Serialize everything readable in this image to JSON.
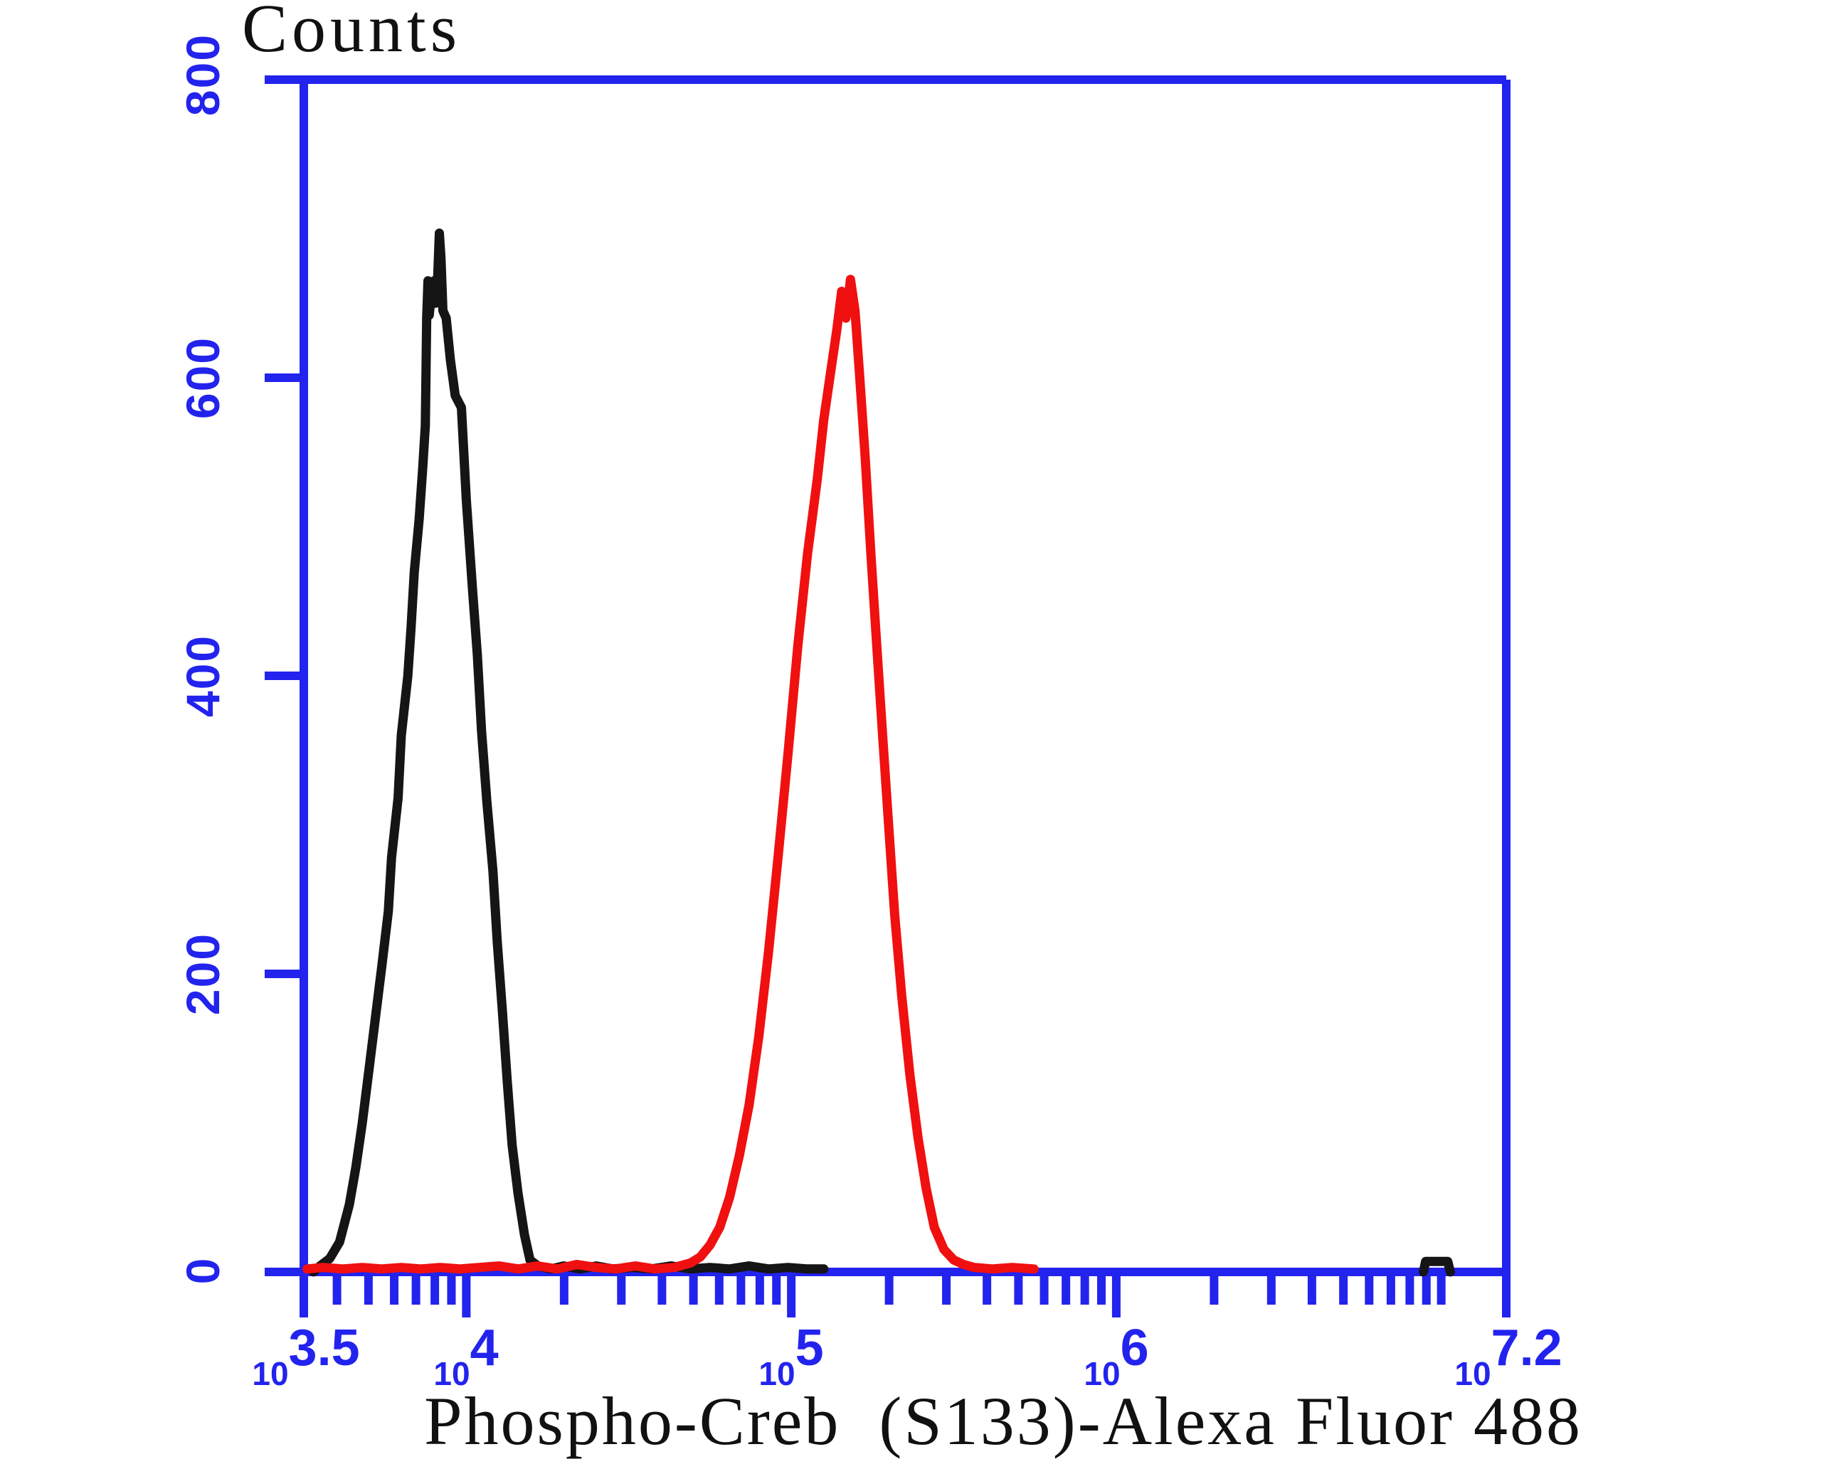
{
  "title": "Counts",
  "x_axis": {
    "label": "Phospho-Creb  (S133)-Alexa Fluor 488",
    "base": "10",
    "scale": "log10 (labels shown as exponents of 10)",
    "range_exponents": [
      3.5,
      7.2
    ],
    "ticks": [
      {
        "exp": "3.5",
        "value": 3.5
      },
      {
        "exp": "4",
        "value": 4
      },
      {
        "exp": "5",
        "value": 5
      },
      {
        "exp": "6",
        "value": 6
      },
      {
        "exp": "7.2",
        "value": 7.2
      }
    ]
  },
  "y_axis": {
    "label": "Counts",
    "range": [
      0,
      800
    ],
    "ticks": [
      {
        "label": "0",
        "value": 0
      },
      {
        "label": "200",
        "value": 200
      },
      {
        "label": "400",
        "value": 400
      },
      {
        "label": "600",
        "value": 600
      },
      {
        "label": "800",
        "value": 800
      }
    ]
  },
  "colors": {
    "axis": "#2323ee",
    "tick_labels": "#2323ee",
    "control_curve": "#151515",
    "stained_curve": "#f01010",
    "background": "#ffffff",
    "text": "#111111"
  },
  "chart_data": {
    "type": "line",
    "subtype": "flow-cytometry-histogram-overlay",
    "title": "Counts",
    "xlabel": "Phospho-Creb (S133)-Alexa Fluor 488",
    "ylabel": "Counts",
    "x_scale": "log10, values given as exponent of 10",
    "xlim_exponents": [
      3.5,
      7.2
    ],
    "ylim": [
      0,
      800
    ],
    "grid": false,
    "legend": "none",
    "series": [
      {
        "name": "control (black curve), peak ~700 counts at ~10^3.9",
        "color": "#151515",
        "points": [
          [
            3.53,
            0
          ],
          [
            3.55,
            4
          ],
          [
            3.58,
            9
          ],
          [
            3.61,
            20
          ],
          [
            3.64,
            45
          ],
          [
            3.66,
            70
          ],
          [
            3.68,
            100
          ],
          [
            3.7,
            135
          ],
          [
            3.72,
            170
          ],
          [
            3.74,
            205
          ],
          [
            3.76,
            242
          ],
          [
            3.77,
            278
          ],
          [
            3.79,
            318
          ],
          [
            3.8,
            360
          ],
          [
            3.82,
            400
          ],
          [
            3.83,
            432
          ],
          [
            3.84,
            470
          ],
          [
            3.855,
            505
          ],
          [
            3.866,
            540
          ],
          [
            3.874,
            568
          ],
          [
            3.878,
            640
          ],
          [
            3.882,
            665
          ],
          [
            3.886,
            642
          ],
          [
            3.893,
            658
          ],
          [
            3.9,
            665
          ],
          [
            3.906,
            650
          ],
          [
            3.912,
            668
          ],
          [
            3.917,
            697
          ],
          [
            3.922,
            680
          ],
          [
            3.928,
            645
          ],
          [
            3.938,
            640
          ],
          [
            3.951,
            612
          ],
          [
            3.966,
            588
          ],
          [
            3.985,
            580
          ],
          [
            4.0,
            518
          ],
          [
            4.019,
            458
          ],
          [
            4.034,
            414
          ],
          [
            4.047,
            363
          ],
          [
            4.063,
            316
          ],
          [
            4.082,
            269
          ],
          [
            4.095,
            222
          ],
          [
            4.111,
            175
          ],
          [
            4.126,
            128
          ],
          [
            4.141,
            85
          ],
          [
            4.159,
            53
          ],
          [
            4.179,
            25
          ],
          [
            4.196,
            8
          ],
          [
            4.22,
            4
          ],
          [
            4.26,
            2
          ],
          [
            4.3,
            4
          ],
          [
            4.35,
            2
          ],
          [
            4.4,
            4
          ],
          [
            4.45,
            2
          ],
          [
            4.51,
            3
          ],
          [
            4.57,
            2
          ],
          [
            4.63,
            4
          ],
          [
            4.69,
            2
          ],
          [
            4.75,
            3
          ],
          [
            4.81,
            2
          ],
          [
            4.87,
            4
          ],
          [
            4.93,
            2
          ],
          [
            4.99,
            3
          ],
          [
            5.05,
            2
          ],
          [
            5.1,
            2
          ]
        ]
      },
      {
        "name": "Phospho-Creb (S133) stained (red curve), peak ~665 counts at ~10^5.2",
        "color": "#f01010",
        "points": [
          [
            3.51,
            2
          ],
          [
            3.56,
            3
          ],
          [
            3.62,
            2
          ],
          [
            3.68,
            3
          ],
          [
            3.74,
            2
          ],
          [
            3.8,
            3
          ],
          [
            3.86,
            2
          ],
          [
            3.92,
            3
          ],
          [
            3.98,
            2
          ],
          [
            4.04,
            3
          ],
          [
            4.1,
            4
          ],
          [
            4.16,
            2
          ],
          [
            4.22,
            4
          ],
          [
            4.28,
            2
          ],
          [
            4.34,
            5
          ],
          [
            4.4,
            3
          ],
          [
            4.46,
            2
          ],
          [
            4.52,
            4
          ],
          [
            4.58,
            2
          ],
          [
            4.64,
            3
          ],
          [
            4.69,
            6
          ],
          [
            4.72,
            10
          ],
          [
            4.75,
            18
          ],
          [
            4.78,
            30
          ],
          [
            4.81,
            50
          ],
          [
            4.84,
            78
          ],
          [
            4.87,
            112
          ],
          [
            4.9,
            158
          ],
          [
            4.93,
            215
          ],
          [
            4.96,
            280
          ],
          [
            4.99,
            348
          ],
          [
            5.02,
            420
          ],
          [
            5.05,
            482
          ],
          [
            5.08,
            532
          ],
          [
            5.1,
            572
          ],
          [
            5.12,
            602
          ],
          [
            5.14,
            632
          ],
          [
            5.155,
            658
          ],
          [
            5.168,
            640
          ],
          [
            5.182,
            666
          ],
          [
            5.196,
            645
          ],
          [
            5.21,
            602
          ],
          [
            5.227,
            548
          ],
          [
            5.245,
            482
          ],
          [
            5.263,
            420
          ],
          [
            5.281,
            360
          ],
          [
            5.3,
            298
          ],
          [
            5.318,
            240
          ],
          [
            5.34,
            185
          ],
          [
            5.365,
            132
          ],
          [
            5.39,
            90
          ],
          [
            5.415,
            56
          ],
          [
            5.44,
            30
          ],
          [
            5.47,
            15
          ],
          [
            5.5,
            8
          ],
          [
            5.53,
            5
          ],
          [
            5.563,
            3
          ],
          [
            5.62,
            2
          ],
          [
            5.68,
            3
          ],
          [
            5.747,
            2
          ]
        ]
      },
      {
        "name": "control (black) small baseline blip near 10^7",
        "color": "#151515",
        "points": [
          [
            6.945,
            0
          ],
          [
            6.952,
            7
          ],
          [
            7.02,
            7
          ],
          [
            7.028,
            0
          ]
        ]
      }
    ]
  }
}
